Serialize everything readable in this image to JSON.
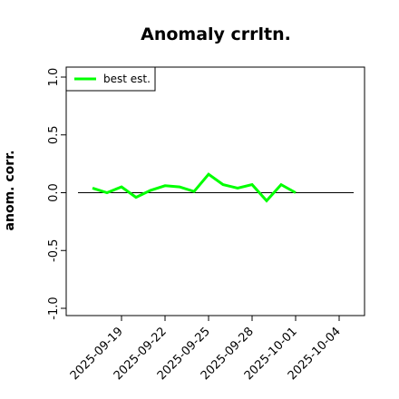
{
  "chart_data": {
    "type": "line",
    "title": "Anomaly crrltn.",
    "xlabel": "",
    "ylabel": "anom. corr.",
    "ylim": [
      -1.0,
      1.0
    ],
    "yticks": [
      -1.0,
      -0.5,
      0.0,
      0.5,
      1.0
    ],
    "ytick_labels": [
      "-1.0",
      "-0.5",
      "0.0",
      "0.5",
      "1.0"
    ],
    "xlim": [
      "2025-09-16",
      "2025-10-05"
    ],
    "xtick_labels": [
      "2025-09-19",
      "2025-09-22",
      "2025-09-25",
      "2025-09-28",
      "2025-10-01",
      "2025-10-04"
    ],
    "reference_line": {
      "y": 0.0,
      "color": "#000000"
    },
    "legend_position": "top-left",
    "grid": false,
    "series": [
      {
        "name": "best est.",
        "color": "#00ff00",
        "x": [
          "2025-09-17",
          "2025-09-18",
          "2025-09-19",
          "2025-09-20",
          "2025-09-21",
          "2025-09-22",
          "2025-09-23",
          "2025-09-24",
          "2025-09-25",
          "2025-09-26",
          "2025-09-27",
          "2025-09-28",
          "2025-09-29",
          "2025-09-30",
          "2025-10-01",
          "2025-10-02"
        ],
        "values": [
          0.04,
          0.0,
          0.05,
          -0.04,
          0.02,
          0.06,
          0.05,
          0.01,
          0.16,
          0.07,
          0.04,
          0.07,
          -0.07,
          0.07,
          0.0,
          null
        ]
      }
    ]
  }
}
